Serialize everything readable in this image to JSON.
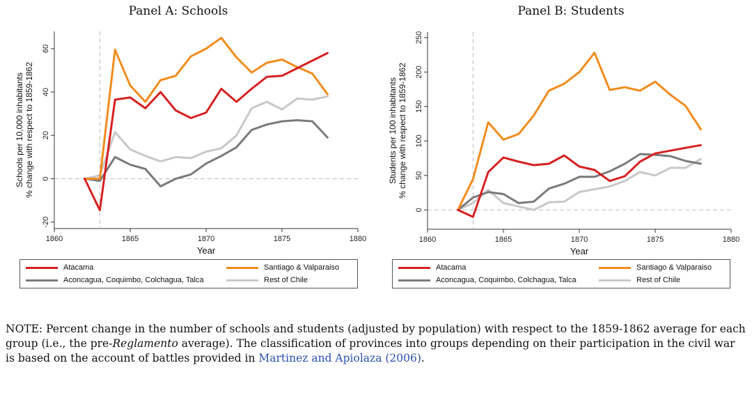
{
  "panels": [
    {
      "title": "Panel A: Schools",
      "chart_data": {
        "type": "line",
        "title": "Panel A: Schools",
        "xlabel": "Year",
        "ylabel_lines": [
          "Schools per 10,000 inhabitants",
          "% change with respect to 1859-1862"
        ],
        "xlim": [
          1860,
          1880
        ],
        "ylim": [
          -23,
          68
        ],
        "xticks": [
          1860,
          1865,
          1870,
          1875,
          1880
        ],
        "yticks": [
          -20,
          0,
          20,
          40,
          60
        ],
        "vline_x": 1863,
        "hline_y": 0,
        "x": [
          1862,
          1863,
          1864,
          1865,
          1866,
          1867,
          1868,
          1869,
          1870,
          1871,
          1872,
          1873,
          1874,
          1875,
          1876,
          1877,
          1878
        ],
        "series": [
          {
            "name": "Atacama",
            "color": "#d62020",
            "values": [
              0,
              -14.5,
              36.5,
              37.5,
              32.5,
              40,
              31.5,
              28,
              30.5,
              41.5,
              35.5,
              41.5,
              47,
              47.5,
              51,
              54.5,
              58
            ]
          },
          {
            "name": "Santiago & Valparaiso",
            "color": "#f28c1c",
            "values": [
              0,
              0,
              59.5,
              43,
              35.5,
              45.5,
              47.5,
              56.5,
              60,
              65,
              56,
              49,
              53.5,
              55,
              51.5,
              48.5,
              39
            ]
          },
          {
            "name": "Aconcagua, Coquimbo, Colchagua, Talca",
            "color": "#7a7a7a",
            "values": [
              0,
              -1,
              10,
              6.5,
              4.5,
              -3.5,
              0,
              2,
              7,
              10.5,
              14.5,
              22.5,
              25,
              26.5,
              27,
              26.5,
              19
            ]
          },
          {
            "name": "Rest of Chile",
            "color": "#c8c8c8",
            "values": [
              0,
              1.5,
              21.5,
              13.5,
              10.5,
              8,
              10,
              9.5,
              12.5,
              14,
              20,
              32.5,
              35.5,
              32,
              37,
              36.5,
              38
            ]
          }
        ]
      }
    },
    {
      "title": "Panel B: Students",
      "chart_data": {
        "type": "line",
        "title": "Panel B: Students",
        "xlabel": "Year",
        "ylabel_lines": [
          "Students per 100 inhabitants",
          "% change with respect to 1859-1862"
        ],
        "xlim": [
          1860,
          1880
        ],
        "ylim": [
          -28,
          258
        ],
        "xticks": [
          1860,
          1865,
          1870,
          1875,
          1880
        ],
        "yticks": [
          0,
          50,
          100,
          150,
          200,
          250
        ],
        "vline_x": 1863,
        "hline_y": 0,
        "x": [
          1862,
          1863,
          1864,
          1865,
          1866,
          1867,
          1868,
          1869,
          1870,
          1871,
          1872,
          1873,
          1874,
          1875,
          1876,
          1877,
          1878
        ],
        "series": [
          {
            "name": "Atacama",
            "color": "#d62020",
            "values": [
              0,
              -10,
              55,
              76,
              70,
              65,
              67,
              79,
              63,
              58,
              42,
              49,
              70,
              82,
              86,
              90,
              94
            ]
          },
          {
            "name": "Santiago & Valparaiso",
            "color": "#f28c1c",
            "values": [
              0,
              45,
              127,
              102,
              110,
              137,
              173,
              183,
              200,
              228,
              174,
              178,
              173,
              186,
              167,
              151,
              117
            ]
          },
          {
            "name": "Aconcagua, Coquimbo, Colchagua, Talca",
            "color": "#7a7a7a",
            "values": [
              0,
              18,
              26,
              23,
              10,
              12,
              31,
              38,
              48,
              48,
              56,
              67,
              81,
              80,
              78,
              71,
              67
            ]
          },
          {
            "name": "Rest of Chile",
            "color": "#c8c8c8",
            "values": [
              0,
              10,
              29,
              10,
              5,
              0,
              11,
              12,
              26,
              30,
              34,
              42,
              55,
              50,
              61,
              61,
              74
            ]
          }
        ]
      }
    }
  ],
  "legend_colors": {
    "atacama": "#d62020",
    "santiago": "#f28c1c",
    "aconcagua": "#7a7a7a",
    "rest": "#c8c8c8"
  },
  "note": {
    "prefix": "NOTE: Percent change in the number of schools and students (adjusted by population) with respect to the 1859-1862 average for each group (i.e., the pre-",
    "italic": "Reglamento",
    "middle": " average). The classification of provinces into groups depending on their participation in the civil war is based on the account of battles provided in ",
    "citation": "Martinez and Apiolaza (2006)",
    "suffix": "."
  }
}
